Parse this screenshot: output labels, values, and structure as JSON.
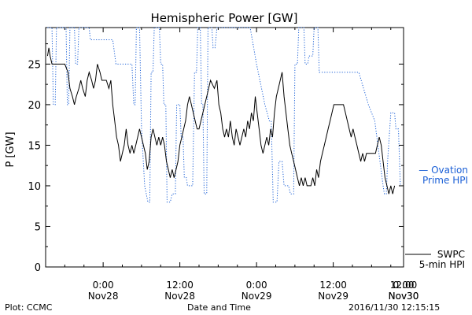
{
  "chart_data": {
    "type": "line",
    "title": "Hemispheric Power [GW]",
    "xlabel": "Date and Time",
    "ylabel": "P [GW]",
    "ylim": [
      0,
      29.5
    ],
    "xlim": [
      -9,
      47
    ],
    "yticks": [
      0,
      5,
      10,
      15,
      20,
      25
    ],
    "x_unit": "hours relative to 2016-11-28 00:00 UT",
    "xticks": [
      {
        "x": 0,
        "time": "0:00",
        "date": "Nov28"
      },
      {
        "x": 12,
        "time": "12:00",
        "date": "Nov28"
      },
      {
        "x": 24,
        "time": "0:00",
        "date": "Nov29"
      },
      {
        "x": 36,
        "time": "12:00",
        "date": "Nov29"
      },
      {
        "x": 48,
        "time": "0:00",
        "date": "Nov30"
      },
      {
        "x": 60,
        "time": "12:00",
        "date": "Nov30"
      }
    ],
    "legend": [
      {
        "lines": [
          "— Ovation",
          "Prime HPI"
        ],
        "color": "#1a5fd6",
        "style": "dotted"
      },
      {
        "lines": [
          "SWPC",
          "5-min HPI"
        ],
        "color": "#000000",
        "style": "solid"
      }
    ],
    "series": [
      {
        "name": "SWPC 5-min HPI",
        "color": "#000000",
        "style": "solid",
        "points": [
          [
            -8.7,
            26
          ],
          [
            -8.5,
            27
          ],
          [
            -8.3,
            26
          ],
          [
            -8.0,
            25
          ],
          [
            -6.0,
            25
          ],
          [
            -5.5,
            24
          ],
          [
            -5.2,
            22
          ],
          [
            -4.8,
            21
          ],
          [
            -4.5,
            20
          ],
          [
            -4.2,
            21
          ],
          [
            -3.8,
            22
          ],
          [
            -3.5,
            23
          ],
          [
            -3.2,
            22
          ],
          [
            -2.8,
            21
          ],
          [
            -2.5,
            23
          ],
          [
            -2.2,
            24
          ],
          [
            -1.8,
            23
          ],
          [
            -1.5,
            22
          ],
          [
            -1.2,
            23
          ],
          [
            -0.9,
            25
          ],
          [
            -0.5,
            24
          ],
          [
            -0.2,
            23
          ],
          [
            0.5,
            23
          ],
          [
            0.9,
            22
          ],
          [
            1.2,
            23
          ],
          [
            1.5,
            20
          ],
          [
            1.8,
            18
          ],
          [
            2.1,
            16
          ],
          [
            2.4,
            15
          ],
          [
            2.7,
            13
          ],
          [
            3.0,
            14
          ],
          [
            3.3,
            15
          ],
          [
            3.6,
            17
          ],
          [
            3.9,
            15
          ],
          [
            4.2,
            14
          ],
          [
            4.5,
            15
          ],
          [
            4.8,
            14
          ],
          [
            5.1,
            15
          ],
          [
            5.4,
            16
          ],
          [
            5.7,
            17
          ],
          [
            6.0,
            16
          ],
          [
            6.3,
            15
          ],
          [
            6.6,
            14
          ],
          [
            6.9,
            12
          ],
          [
            7.2,
            13
          ],
          [
            7.5,
            16
          ],
          [
            7.8,
            17
          ],
          [
            8.1,
            16
          ],
          [
            8.4,
            15
          ],
          [
            8.7,
            16
          ],
          [
            9.0,
            15
          ],
          [
            9.3,
            16
          ],
          [
            9.6,
            15
          ],
          [
            9.9,
            13
          ],
          [
            10.2,
            12
          ],
          [
            10.5,
            11
          ],
          [
            10.8,
            12
          ],
          [
            11.1,
            11
          ],
          [
            11.4,
            12
          ],
          [
            11.7,
            13
          ],
          [
            12.0,
            15
          ],
          [
            12.3,
            16
          ],
          [
            12.6,
            17
          ],
          [
            12.9,
            18
          ],
          [
            13.2,
            20
          ],
          [
            13.5,
            21
          ],
          [
            13.8,
            20
          ],
          [
            14.1,
            19
          ],
          [
            14.4,
            18
          ],
          [
            14.7,
            17
          ],
          [
            15.0,
            17
          ],
          [
            15.3,
            18
          ],
          [
            15.6,
            19
          ],
          [
            15.9,
            20
          ],
          [
            16.2,
            21
          ],
          [
            16.5,
            22
          ],
          [
            16.8,
            23
          ],
          [
            17.4,
            22
          ],
          [
            17.8,
            23
          ],
          [
            18.1,
            20
          ],
          [
            18.4,
            19
          ],
          [
            18.7,
            17
          ],
          [
            19.0,
            16
          ],
          [
            19.3,
            17
          ],
          [
            19.6,
            16
          ],
          [
            19.9,
            18
          ],
          [
            20.2,
            16
          ],
          [
            20.5,
            15
          ],
          [
            20.8,
            17
          ],
          [
            21.1,
            16
          ],
          [
            21.4,
            15
          ],
          [
            21.7,
            16
          ],
          [
            22.0,
            17
          ],
          [
            22.3,
            16
          ],
          [
            22.6,
            18
          ],
          [
            22.9,
            17
          ],
          [
            23.2,
            19
          ],
          [
            23.5,
            18
          ],
          [
            23.8,
            21
          ],
          [
            24.1,
            19
          ],
          [
            24.4,
            17
          ],
          [
            24.7,
            15
          ],
          [
            25.0,
            14
          ],
          [
            25.3,
            15
          ],
          [
            25.6,
            16
          ],
          [
            25.9,
            15
          ],
          [
            26.2,
            17
          ],
          [
            26.5,
            16
          ],
          [
            26.8,
            19
          ],
          [
            27.1,
            21
          ],
          [
            27.4,
            22
          ],
          [
            27.7,
            23
          ],
          [
            28.0,
            24
          ],
          [
            28.3,
            21
          ],
          [
            28.6,
            19
          ],
          [
            28.9,
            17
          ],
          [
            29.2,
            15
          ],
          [
            29.5,
            14
          ],
          [
            29.8,
            13
          ],
          [
            30.1,
            12
          ],
          [
            30.4,
            11
          ],
          [
            30.7,
            10
          ],
          [
            31.0,
            11
          ],
          [
            31.3,
            10
          ],
          [
            31.6,
            11
          ],
          [
            31.9,
            10
          ],
          [
            32.5,
            10
          ],
          [
            32.8,
            11
          ],
          [
            33.1,
            10
          ],
          [
            33.4,
            12
          ],
          [
            33.7,
            11
          ],
          [
            34.0,
            13
          ],
          [
            34.3,
            14
          ],
          [
            34.6,
            15
          ],
          [
            34.9,
            16
          ],
          [
            35.2,
            17
          ],
          [
            35.5,
            18
          ],
          [
            35.8,
            19
          ],
          [
            36.1,
            20
          ],
          [
            37.6,
            20
          ],
          [
            37.9,
            19
          ],
          [
            38.2,
            18
          ],
          [
            38.5,
            17
          ],
          [
            38.8,
            16
          ],
          [
            39.1,
            17
          ],
          [
            39.4,
            16
          ],
          [
            39.7,
            15
          ],
          [
            40.0,
            14
          ],
          [
            40.3,
            13
          ],
          [
            40.6,
            14
          ],
          [
            40.9,
            13
          ],
          [
            41.2,
            14
          ],
          [
            42.6,
            14
          ],
          [
            42.9,
            15
          ],
          [
            43.2,
            16
          ],
          [
            43.5,
            15
          ],
          [
            43.8,
            13
          ],
          [
            44.1,
            11
          ],
          [
            44.4,
            10
          ],
          [
            44.7,
            9
          ],
          [
            45.0,
            10
          ],
          [
            45.3,
            9
          ],
          [
            45.6,
            10
          ]
        ]
      },
      {
        "name": "Ovation Prime HPI",
        "color": "#1a5fd6",
        "style": "dotted",
        "points": [
          [
            -8.7,
            29.5
          ],
          [
            -8.0,
            29.5
          ],
          [
            -7.8,
            20
          ],
          [
            -7.5,
            20
          ],
          [
            -7.3,
            29.5
          ],
          [
            -5.8,
            29.5
          ],
          [
            -5.6,
            20
          ],
          [
            -5.4,
            20
          ],
          [
            -5.2,
            29.5
          ],
          [
            -4.5,
            29.5
          ],
          [
            -4.3,
            25
          ],
          [
            -4.0,
            25
          ],
          [
            -3.8,
            29.5
          ],
          [
            -2.2,
            29.5
          ],
          [
            -2.0,
            28
          ],
          [
            1.5,
            28
          ],
          [
            2.0,
            25
          ],
          [
            4.5,
            25
          ],
          [
            4.8,
            20
          ],
          [
            5.0,
            20
          ],
          [
            5.2,
            29.5
          ],
          [
            5.7,
            29.5
          ],
          [
            6.0,
            17
          ],
          [
            6.5,
            10
          ],
          [
            7.0,
            8
          ],
          [
            7.3,
            8
          ],
          [
            7.5,
            24
          ],
          [
            7.8,
            24
          ],
          [
            8.0,
            29.5
          ],
          [
            8.8,
            29.5
          ],
          [
            9.0,
            25
          ],
          [
            9.3,
            25
          ],
          [
            9.5,
            20
          ],
          [
            9.8,
            20
          ],
          [
            10.0,
            8
          ],
          [
            10.5,
            8
          ],
          [
            10.8,
            9
          ],
          [
            11.3,
            9
          ],
          [
            11.5,
            20
          ],
          [
            12.0,
            20
          ],
          [
            12.2,
            16
          ],
          [
            12.5,
            16
          ],
          [
            12.7,
            11
          ],
          [
            13.0,
            11
          ],
          [
            13.2,
            10
          ],
          [
            14.0,
            10
          ],
          [
            14.3,
            24
          ],
          [
            14.6,
            24
          ],
          [
            14.8,
            29.5
          ],
          [
            15.2,
            29.5
          ],
          [
            15.4,
            20
          ],
          [
            15.6,
            20
          ],
          [
            15.8,
            9
          ],
          [
            16.2,
            9
          ],
          [
            16.4,
            29.5
          ],
          [
            17.0,
            29.5
          ],
          [
            17.2,
            27
          ],
          [
            17.5,
            27
          ],
          [
            17.8,
            29.5
          ],
          [
            23.0,
            29.5
          ],
          [
            24.0,
            25
          ],
          [
            25.3,
            20
          ],
          [
            26.0,
            18
          ],
          [
            26.3,
            18
          ],
          [
            26.6,
            8
          ],
          [
            27.2,
            8
          ],
          [
            27.5,
            13
          ],
          [
            28.0,
            13
          ],
          [
            28.3,
            10
          ],
          [
            29.0,
            10
          ],
          [
            29.3,
            9
          ],
          [
            29.8,
            9
          ],
          [
            30.0,
            25
          ],
          [
            30.4,
            25
          ],
          [
            30.6,
            29.5
          ],
          [
            31.4,
            29.5
          ],
          [
            31.6,
            25
          ],
          [
            32.0,
            25
          ],
          [
            32.2,
            26
          ],
          [
            32.8,
            26
          ],
          [
            33.0,
            29.5
          ],
          [
            33.6,
            29.5
          ],
          [
            33.8,
            24
          ],
          [
            40.0,
            24
          ],
          [
            41.5,
            20
          ],
          [
            42.5,
            18
          ],
          [
            43.8,
            10
          ],
          [
            44.0,
            9
          ],
          [
            44.3,
            9
          ],
          [
            44.5,
            13
          ],
          [
            45.0,
            19
          ],
          [
            45.6,
            19
          ],
          [
            45.8,
            17
          ],
          [
            46.2,
            17
          ],
          [
            46.5,
            10
          ]
        ]
      }
    ]
  },
  "footer": {
    "plot_credit": "Plot: CCMC",
    "x_axis_label": "Date and Time",
    "timestamp": "2016/11/30 12:15:15"
  }
}
